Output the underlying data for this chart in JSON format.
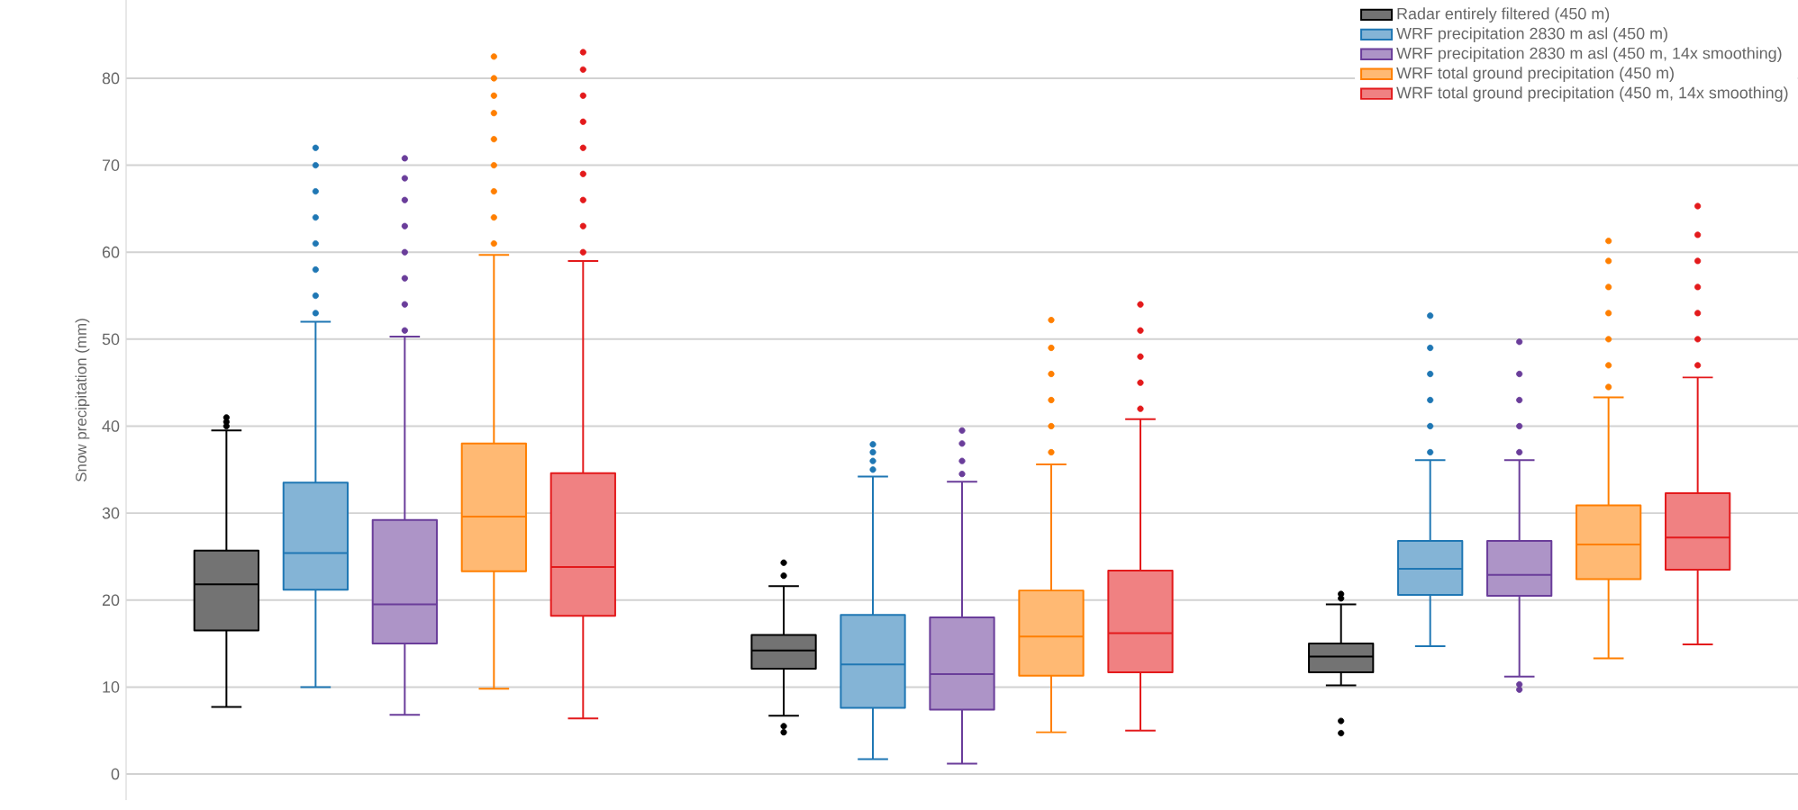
{
  "chart_data": {
    "type": "box",
    "ylabel": "Snow precipitation (mm)",
    "categories": [
      null,
      null,
      null
    ],
    "ylim": [
      -3,
      89
    ],
    "yticks": [
      0,
      10,
      20,
      30,
      40,
      50,
      60,
      70,
      80
    ],
    "grid": "y",
    "legend": "top right",
    "tick_labels": "y",
    "marker": "circle",
    "series": [
      {
        "name": "Radar entirely filtered (450 m)",
        "color": "#000000",
        "boxes": [
          {
            "low": 7.7,
            "q1": 16.5,
            "median": 21.8,
            "q3": 25.7,
            "high": 39.5,
            "outliers": [
              40,
              40.5,
              41
            ]
          },
          {
            "low": 6.7,
            "q1": 12.1,
            "median": 14.2,
            "q3": 16.0,
            "high": 21.6,
            "outliers": [
              4.8,
              5.5,
              22.8,
              24.3
            ]
          },
          {
            "low": 10.2,
            "q1": 11.7,
            "median": 13.5,
            "q3": 15.0,
            "high": 19.5,
            "outliers": [
              4.7,
              6.1,
              20.2,
              20.7
            ]
          }
        ]
      },
      {
        "name": "WRF precipitation 2830 m asl (450 m)",
        "color": "#1f77b4",
        "boxes": [
          {
            "low": 10,
            "q1": 21.2,
            "median": 25.4,
            "q3": 33.5,
            "high": 52,
            "outliers": [
              53,
              55,
              58,
              61,
              64,
              67,
              70,
              72
            ]
          },
          {
            "low": 1.7,
            "q1": 7.6,
            "median": 12.6,
            "q3": 18.3,
            "high": 34.2,
            "outliers": [
              35,
              36,
              37,
              37.9
            ]
          },
          {
            "low": 14.7,
            "q1": 20.6,
            "median": 23.6,
            "q3": 26.8,
            "high": 36.1,
            "outliers": [
              37,
              40,
              43,
              46,
              49,
              52.7
            ]
          }
        ]
      },
      {
        "name": "WRF precipitation 2830 m asl (450 m, 14x smoothing)",
        "color": "#6a3d9a",
        "boxes": [
          {
            "low": 6.8,
            "q1": 15,
            "median": 19.5,
            "q3": 29.2,
            "high": 50.3,
            "outliers": [
              51,
              54,
              57,
              60,
              63,
              66,
              68.5,
              70.8
            ]
          },
          {
            "low": 1.2,
            "q1": 7.4,
            "median": 11.5,
            "q3": 18.0,
            "high": 33.6,
            "outliers": [
              34.5,
              36,
              38,
              39.5
            ]
          },
          {
            "low": 11.2,
            "q1": 20.5,
            "median": 22.9,
            "q3": 26.8,
            "high": 36.1,
            "outliers": [
              9.7,
              10.3,
              37,
              40,
              43,
              46,
              49.7
            ]
          }
        ]
      },
      {
        "name": "WRF total ground precipitation (450 m)",
        "color": "#ff7f00",
        "boxes": [
          {
            "low": 9.8,
            "q1": 23.3,
            "median": 29.6,
            "q3": 38,
            "high": 59.7,
            "outliers": [
              61,
              64,
              67,
              70,
              73,
              76,
              78,
              80,
              82.5
            ]
          },
          {
            "low": 4.8,
            "q1": 11.3,
            "median": 15.8,
            "q3": 21.1,
            "high": 35.6,
            "outliers": [
              37,
              40,
              43,
              46,
              49,
              52.2
            ]
          },
          {
            "low": 13.3,
            "q1": 22.4,
            "median": 26.4,
            "q3": 30.9,
            "high": 43.3,
            "outliers": [
              44.5,
              47,
              50,
              53,
              56,
              59,
              61.3
            ]
          }
        ]
      },
      {
        "name": "WRF total ground precipitation (450 m, 14x smoothing)",
        "color": "#e31a1c",
        "boxes": [
          {
            "low": 6.4,
            "q1": 18.2,
            "median": 23.8,
            "q3": 34.6,
            "high": 59,
            "outliers": [
              60,
              63,
              66,
              69,
              72,
              75,
              78,
              81,
              83
            ]
          },
          {
            "low": 5.0,
            "q1": 11.7,
            "median": 16.2,
            "q3": 23.4,
            "high": 40.8,
            "outliers": [
              42,
              45,
              48,
              51,
              54
            ]
          },
          {
            "low": 14.9,
            "q1": 23.5,
            "median": 27.2,
            "q3": 32.3,
            "high": 45.6,
            "outliers": [
              47,
              50,
              53,
              56,
              59,
              62,
              65.3
            ]
          }
        ]
      }
    ]
  }
}
